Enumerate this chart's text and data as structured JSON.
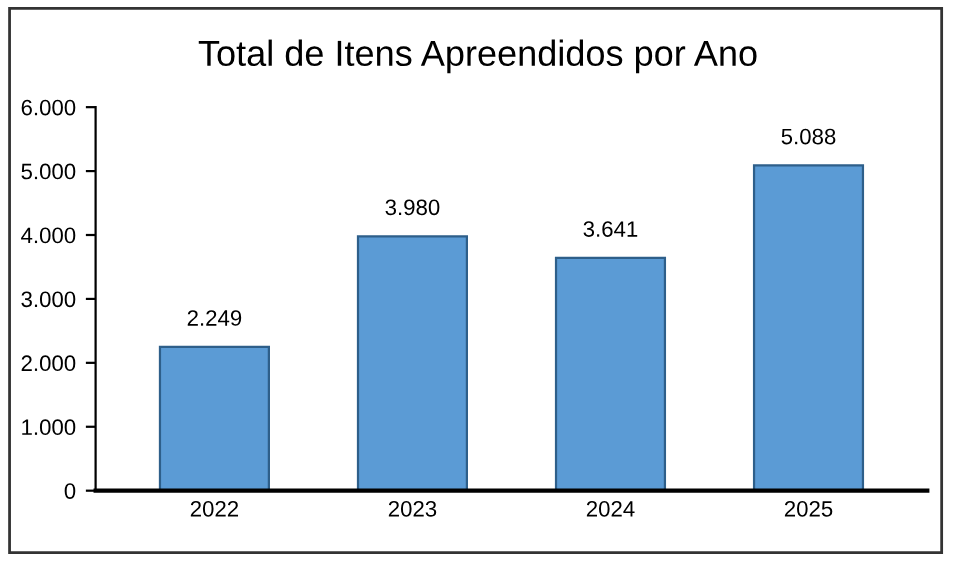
{
  "chart_data": {
    "type": "bar",
    "title": "Total de Itens Apreendidos por Ano",
    "categories": [
      "2022",
      "2023",
      "2024",
      "2025"
    ],
    "values": [
      2249,
      3980,
      3641,
      5088
    ],
    "value_labels": [
      "2.249",
      "3.980",
      "3.641",
      "5.088"
    ],
    "color": "#5b9bd5",
    "ylim": [
      0,
      6000
    ],
    "yticks": [
      {
        "value": 0,
        "label": "0"
      },
      {
        "value": 1000,
        "label": "1.000"
      },
      {
        "value": 2000,
        "label": "2.000"
      },
      {
        "value": 3000,
        "label": "3.000"
      },
      {
        "value": 4000,
        "label": "4.000"
      },
      {
        "value": 5000,
        "label": "5.000"
      },
      {
        "value": 6000,
        "label": "6.000"
      }
    ],
    "grid": false
  }
}
